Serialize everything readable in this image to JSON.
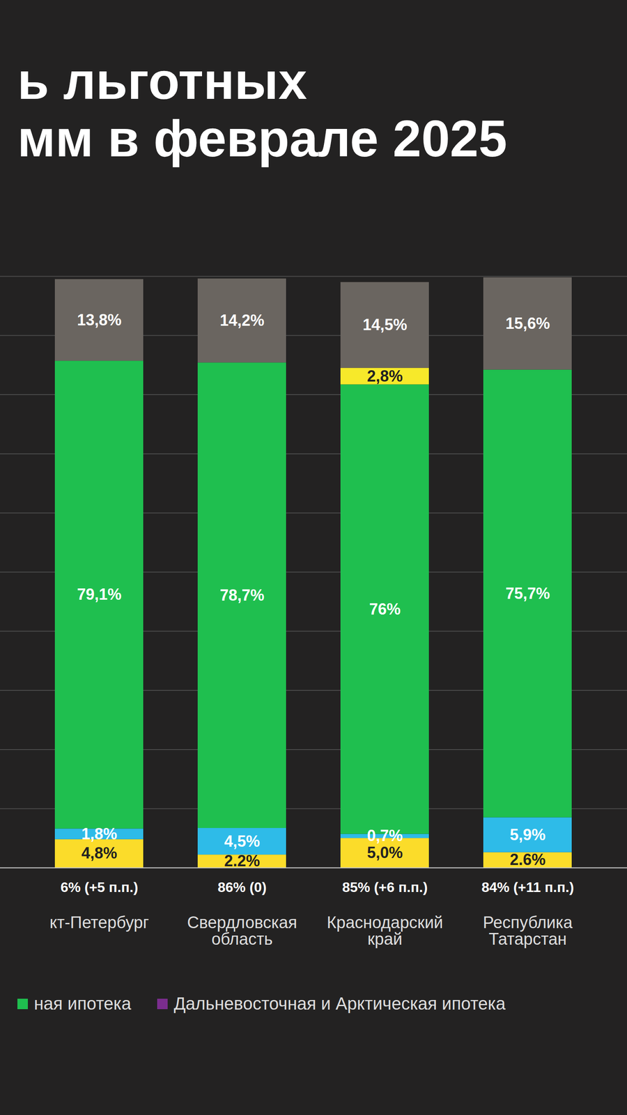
{
  "chart_data": {
    "type": "bar",
    "stacked": true,
    "title": [
      "ь льготных",
      "мм в феврале 2025"
    ],
    "categories": [
      "кт-Петербург",
      "Свердловская область",
      "Краснодарский край",
      "Республика Татарстан"
    ],
    "annotations": [
      "6% (+5 п.п.)",
      "86% (0)",
      "85% (+6 п.п.)",
      "84% (+11 п.п.)"
    ],
    "series": [
      {
        "name": null,
        "color": "#fbdc2a",
        "values": [
          4.8,
          2.2,
          5.0,
          2.6
        ],
        "value_labels": [
          "4,8%",
          "2.2%",
          "5,0%",
          "2.6%"
        ]
      },
      {
        "name": null,
        "color": "#2ebbe8",
        "values": [
          1.8,
          4.5,
          0.7,
          5.9
        ],
        "value_labels": [
          "1,8%",
          "4,5%",
          "0,7%",
          "5,9%"
        ]
      },
      {
        "name": "Дальневосточная и Арктическая ипотека",
        "color": "#7b2d8e",
        "values": [
          0,
          0,
          0,
          0
        ],
        "value_labels": [
          null,
          null,
          null,
          null
        ]
      },
      {
        "name": "ная ипотека",
        "color": "#1fbf4f",
        "values": [
          79.1,
          78.7,
          76,
          75.7
        ],
        "value_labels": [
          "79,1%",
          "78,7%",
          "76%",
          "75,7%"
        ]
      },
      {
        "name": null,
        "color": "#f7e92a",
        "values": [
          0,
          0,
          2.8,
          0
        ],
        "value_labels": [
          null,
          null,
          "2,8%",
          null
        ]
      },
      {
        "name": null,
        "color": "#6a6560",
        "values": [
          13.8,
          14.2,
          14.5,
          15.6
        ],
        "value_labels": [
          "13,8%",
          "14,2%",
          "14,5%",
          "15,6%"
        ]
      }
    ],
    "ylim": [
      0,
      100
    ],
    "yticks": [
      0,
      10,
      20,
      30,
      40,
      50,
      60,
      70,
      80,
      90,
      100
    ],
    "grid": true,
    "tick_labels": "x",
    "data_labels": true
  }
}
